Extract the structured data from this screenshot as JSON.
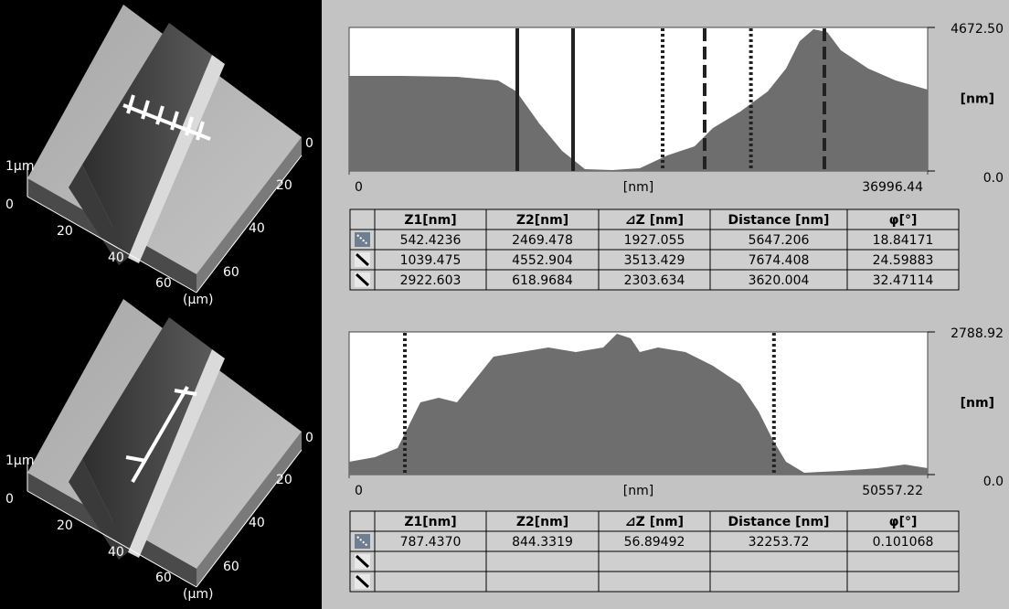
{
  "views": [
    {
      "z_top": "1µm",
      "z_zero": "0",
      "front_ticks": [
        "20",
        "40",
        "60"
      ],
      "side_ticks": [
        "0",
        "20",
        "40",
        "60"
      ],
      "unit": "(µm)"
    },
    {
      "z_top": "1µm",
      "z_zero": "0",
      "front_ticks": [
        "20",
        "40",
        "60"
      ],
      "side_ticks": [
        "0",
        "20",
        "40",
        "60"
      ],
      "unit": "(µm)"
    }
  ],
  "profiles": [
    {
      "type": "area",
      "xlabel": "[nm]",
      "ylabel": "[nm]",
      "xlim": [
        0,
        36996.44
      ],
      "ylim": [
        0,
        4672.5
      ],
      "xticks": [
        0,
        36996.44
      ],
      "yticks": [
        {
          "value": 4672.5,
          "label": "4672.50"
        },
        {
          "value": 0,
          "label": "0.0"
        }
      ],
      "color": "#6e6e6e",
      "x": [
        0,
        3390,
        6897,
        9527,
        10696,
        12157,
        13618,
        15080,
        16833,
        18587,
        20340,
        22094,
        23262,
        25016,
        26769,
        27938,
        28814,
        29691,
        30568,
        31445,
        33198,
        34951,
        36996
      ],
      "values": [
        3095,
        3095,
        3065,
        2946,
        2589,
        1548,
        655,
        60,
        30,
        89,
        506,
        804,
        1399,
        1934,
        2589,
        3333,
        4226,
        4613,
        4523,
        3928,
        3333,
        2946,
        2648
      ],
      "cursors": [
        {
          "style": "solid",
          "x": [
            10754,
            14320
          ]
        },
        {
          "style": "dotted",
          "x": [
            20048,
            25695
          ]
        },
        {
          "style": "dashed",
          "x": [
            22736,
            30392
          ]
        }
      ]
    },
    {
      "type": "area",
      "xlabel": "[nm]",
      "ylabel": "[nm]",
      "xlim": [
        0,
        50557.22
      ],
      "ylim": [
        0,
        2788.92
      ],
      "xticks": [
        0,
        50557.22
      ],
      "yticks": [
        {
          "value": 2788.92,
          "label": "2788.92"
        },
        {
          "value": 0,
          "label": "0.0"
        }
      ],
      "color": "#6e6e6e",
      "x": [
        0,
        2236,
        4233,
        5032,
        6230,
        7827,
        9425,
        11022,
        12619,
        15016,
        17412,
        19808,
        22204,
        23402,
        24600,
        25399,
        26996,
        29392,
        31788,
        34184,
        35782,
        36980,
        38178,
        39775,
        42970,
        46165,
        48561,
        50557
      ],
      "values": [
        250,
        340,
        519,
        876,
        1412,
        1502,
        1412,
        1860,
        2306,
        2396,
        2485,
        2396,
        2485,
        2753,
        2664,
        2396,
        2485,
        2396,
        2128,
        1770,
        1234,
        698,
        250,
        36,
        72,
        125,
        197,
        125
      ],
      "cursors": [
        {
          "style": "dotted",
          "x": [
            4872,
            37125
          ]
        }
      ]
    }
  ],
  "tables": [
    {
      "columns": [
        "Z1[nm]",
        "Z2[nm]",
        "⊿Z [nm]",
        "Distance [nm]",
        "φ[°]"
      ],
      "rows": [
        [
          "542.4236",
          "2469.478",
          "1927.055",
          "5647.206",
          "18.84171"
        ],
        [
          "1039.475",
          "4552.904",
          "3513.429",
          "7674.408",
          "24.59883"
        ],
        [
          "2922.603",
          "618.9684",
          "2303.634",
          "3620.004",
          "32.47114"
        ]
      ]
    },
    {
      "columns": [
        "Z1[nm]",
        "Z2[nm]",
        "⊿Z [nm]",
        "Distance [nm]",
        "φ[°]"
      ],
      "rows": [
        [
          "787.4370",
          "844.3319",
          "56.89492",
          "32253.72",
          "0.101068"
        ]
      ]
    }
  ]
}
